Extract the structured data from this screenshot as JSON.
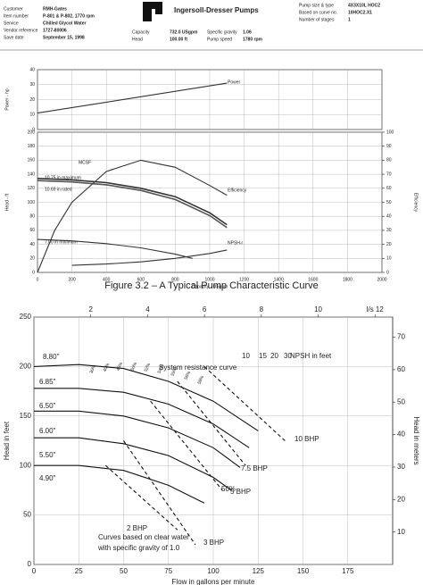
{
  "header": {
    "logo": "Ingersoll-Dresser Pumps",
    "left": [
      [
        "Customer",
        "RMH-Gates"
      ],
      [
        "Item number",
        "P-801 & P-802, 1770 rpm"
      ],
      [
        "Service",
        "Chilled Glycol Water"
      ],
      [
        "Vendor reference",
        "1727-80006"
      ],
      [
        "Save date",
        "September 15, 1998"
      ]
    ],
    "middle": [
      [
        "Capacity",
        "732.0 USgpm"
      ],
      [
        "Head",
        "100.00 ft"
      ]
    ],
    "middle2": [
      [
        "Specific gravity",
        "1.06"
      ],
      [
        "Pump speed",
        "1780 rpm"
      ]
    ],
    "right": [
      [
        "Pump size & type",
        "4X3X10L HOC2"
      ],
      [
        "Based on curve no.",
        "10HOC2.X1"
      ],
      [
        "Number of stages",
        "1"
      ]
    ]
  },
  "caption": "Figure 3.2 – A Typical Pump Characteristic Curve",
  "chart_data": [
    {
      "type": "line",
      "ylabel": "Power - hp",
      "xlim": [
        0,
        2000
      ],
      "ylim": [
        0,
        40
      ],
      "yticks": [
        0,
        10,
        20,
        30,
        40
      ],
      "grid": true,
      "series": [
        {
          "name": "Power",
          "color": "#333",
          "x": [
            0,
            1100
          ],
          "values": [
            11,
            31
          ]
        }
      ]
    },
    {
      "type": "line",
      "xlabel": "Capacity - USgpm",
      "ylabel": "Head - ft",
      "y2label": "Efficiency",
      "xlim": [
        0,
        2000
      ],
      "xticks": [
        0,
        200,
        400,
        600,
        800,
        1000,
        1200,
        1400,
        1600,
        1800,
        2000
      ],
      "ylim": [
        0,
        200
      ],
      "yticks": [
        0,
        20,
        40,
        60,
        80,
        100,
        120,
        140,
        160,
        180,
        200
      ],
      "y2lim": [
        0,
        100
      ],
      "y2ticks": [
        0,
        10,
        20,
        30,
        40,
        50,
        60,
        70,
        80,
        90,
        100
      ],
      "grid": true,
      "annotations": [
        "MCSF"
      ],
      "series": [
        {
          "name": "10.75 in maximum",
          "color": "#333",
          "x": [
            0,
            200,
            400,
            600,
            800,
            1000,
            1100
          ],
          "values": [
            134,
            132,
            128,
            120,
            108,
            85,
            68
          ]
        },
        {
          "name": "10.69 in rated",
          "color": "#555",
          "x": [
            0,
            200,
            400,
            600,
            800,
            1000,
            1100
          ],
          "values": [
            131,
            129,
            125,
            117,
            104,
            81,
            64
          ]
        },
        {
          "name": "7.00 in minimum",
          "color": "#333",
          "x": [
            0,
            200,
            400,
            600,
            800,
            900
          ],
          "values": [
            47,
            45,
            41,
            35,
            26,
            20
          ]
        },
        {
          "name": "Efficiency",
          "color": "#333",
          "axis": "y2",
          "x": [
            0,
            100,
            200,
            400,
            600,
            800,
            1000,
            1100
          ],
          "values": [
            0,
            30,
            50,
            72,
            80,
            75,
            62,
            55
          ]
        },
        {
          "name": "NPSH-r",
          "color": "#333",
          "x": [
            200,
            400,
            600,
            800,
            1000,
            1100
          ],
          "values": [
            10,
            12,
            15,
            20,
            27,
            32
          ]
        }
      ]
    },
    {
      "type": "line",
      "xlabel": "Flow in gallons per minute",
      "ylabel": "Head in feet",
      "y2label": "Head in meters",
      "xlim": [
        0,
        200
      ],
      "xticks": [
        0,
        25,
        50,
        75,
        100,
        125,
        150,
        175
      ],
      "x2lim": [
        0,
        12.62
      ],
      "x2ticks": [
        2,
        4,
        6,
        8,
        10,
        {
          "value": 12,
          "label": "l/s 12"
        }
      ],
      "ylim": [
        0,
        250
      ],
      "yticks": [
        0,
        50,
        100,
        150,
        200,
        250
      ],
      "y2lim": [
        0,
        76.2
      ],
      "y2ticks": [
        10,
        20,
        30,
        40,
        50,
        60,
        70
      ],
      "grid": true,
      "annotations": [
        "8.80\"",
        "System resistance curve",
        "NPSH in feet",
        "10",
        "15",
        "20",
        "30",
        "30%",
        "40%",
        "45%",
        "50%",
        "52%",
        "54%",
        "55%",
        "56%",
        "58%",
        "50%",
        "Curves based on clear water",
        "with specific gravity of 1.0"
      ],
      "series": [
        {
          "name": "6.85\"",
          "color": "#111",
          "x": [
            0,
            25,
            50,
            75,
            100,
            125
          ],
          "values": [
            200,
            202,
            198,
            185,
            165,
            135
          ]
        },
        {
          "name": "6.50\"",
          "color": "#111",
          "x": [
            0,
            25,
            50,
            75,
            100,
            120
          ],
          "values": [
            178,
            178,
            174,
            162,
            142,
            118
          ]
        },
        {
          "name": "6.00\"",
          "color": "#111",
          "x": [
            0,
            25,
            50,
            75,
            100,
            115
          ],
          "values": [
            155,
            155,
            150,
            138,
            118,
            98
          ]
        },
        {
          "name": "5.50\"",
          "color": "#111",
          "x": [
            0,
            25,
            50,
            75,
            100,
            110
          ],
          "values": [
            128,
            128,
            122,
            110,
            88,
            75
          ]
        },
        {
          "name": "4.90\"",
          "color": "#111",
          "x": [
            0,
            25,
            50,
            75,
            95
          ],
          "values": [
            100,
            100,
            95,
            80,
            62
          ]
        },
        {
          "name": "10 BHP",
          "color": "#111",
          "style": "dashed",
          "x": [
            95,
            140
          ],
          "values": [
            200,
            125
          ]
        },
        {
          "name": "7.5 BHP",
          "color": "#111",
          "style": "dashed",
          "x": [
            80,
            118
          ],
          "values": [
            185,
            100
          ]
        },
        {
          "name": "5 BHP",
          "color": "#111",
          "style": "dashed",
          "x": [
            65,
            105
          ],
          "values": [
            165,
            75
          ]
        },
        {
          "name": "3 BHP",
          "color": "#111",
          "style": "dashed",
          "x": [
            50,
            90
          ],
          "values": [
            125,
            20
          ]
        },
        {
          "name": "2 BHP",
          "color": "#111",
          "style": "dashed",
          "x": [
            40,
            80
          ],
          "values": [
            100,
            35
          ]
        }
      ]
    }
  ]
}
